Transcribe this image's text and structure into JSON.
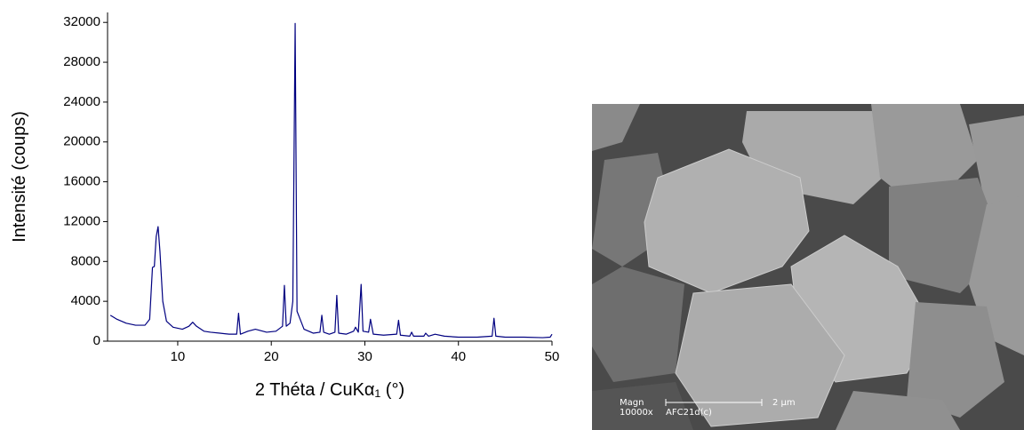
{
  "chart_data": {
    "type": "line",
    "xlabel": "2 Théta / CuKα₁ (°)",
    "ylabel": "Intensité (coups)",
    "color": "#000080",
    "xlim": [
      2.5,
      50
    ],
    "xticks": [
      10,
      20,
      30,
      40,
      50
    ],
    "ylim": [
      0,
      33000
    ],
    "yticks": [
      0,
      4000,
      8000,
      12000,
      16000,
      20000,
      24000,
      28000,
      32000
    ],
    "x": [
      2.8,
      3.5,
      4.5,
      5.5,
      6.5,
      7.0,
      7.3,
      7.5,
      7.7,
      7.9,
      8.1,
      8.4,
      8.8,
      9.5,
      10.5,
      11.2,
      11.6,
      12.0,
      12.8,
      13.5,
      14.5,
      15.5,
      16.3,
      16.5,
      16.7,
      17.5,
      18.3,
      19.5,
      20.5,
      21.2,
      21.4,
      21.6,
      22.0,
      22.3,
      22.55,
      22.75,
      23.0,
      23.5,
      24.5,
      25.2,
      25.4,
      25.6,
      26.2,
      26.8,
      27.0,
      27.2,
      28.0,
      28.8,
      29.0,
      29.3,
      29.6,
      29.8,
      30.4,
      30.6,
      30.9,
      32.0,
      33.4,
      33.6,
      33.8,
      34.8,
      35.0,
      35.2,
      36.3,
      36.5,
      36.8,
      37.5,
      38.5,
      40.0,
      42.0,
      43.6,
      43.8,
      44.0,
      45.0,
      47.0,
      49.0,
      49.8,
      50.0
    ],
    "values": [
      2600,
      2200,
      1800,
      1600,
      1600,
      2200,
      7400,
      7500,
      10500,
      11500,
      9000,
      4000,
      2000,
      1400,
      1200,
      1500,
      1900,
      1500,
      1000,
      900,
      800,
      700,
      700,
      2800,
      700,
      1000,
      1200,
      900,
      1000,
      1500,
      5600,
      1500,
      1800,
      4000,
      31900,
      3000,
      2400,
      1200,
      800,
      900,
      2600,
      900,
      700,
      900,
      4600,
      800,
      700,
      1000,
      1400,
      900,
      5700,
      1000,
      900,
      2200,
      700,
      600,
      700,
      2100,
      600,
      500,
      900,
      500,
      500,
      800,
      500,
      700,
      500,
      400,
      400,
      500,
      2300,
      500,
      400,
      400,
      350,
      400,
      700
    ]
  },
  "image": {
    "magnification_label": "Magn",
    "magnification": "10000x",
    "sample": "AFC21d(c)",
    "scale_bar": "2 µm"
  }
}
